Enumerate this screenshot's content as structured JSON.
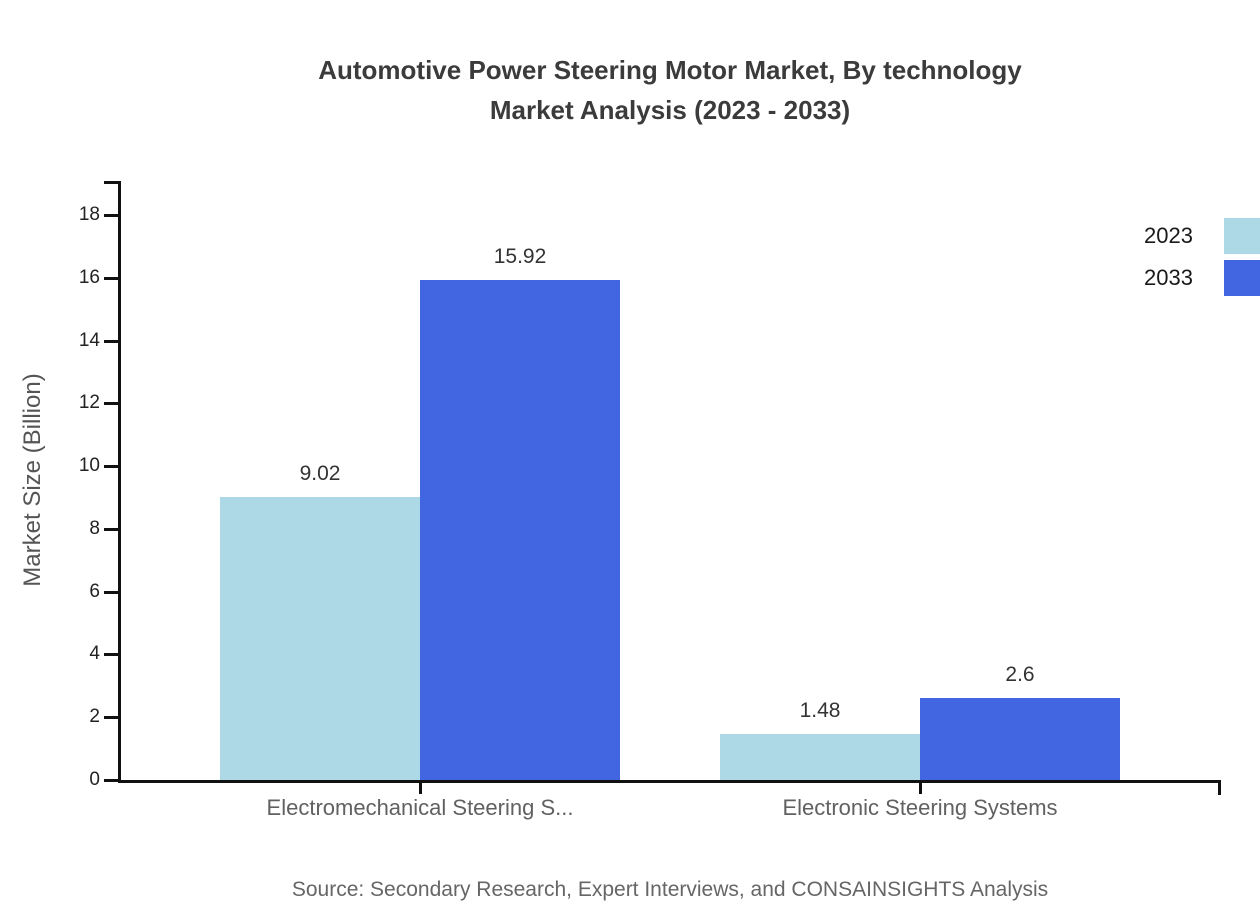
{
  "chart_data": {
    "type": "bar",
    "title": "Automotive Power Steering Motor Market, By technology Market Analysis (2023 - 2033)",
    "title_lines": [
      "Automotive Power Steering Motor Market, By technology",
      "Market Analysis (2023 - 2033)"
    ],
    "categories": [
      "Electromechanical Steering S...",
      "Electronic Steering Systems"
    ],
    "series": [
      {
        "name": "2023",
        "color": "#ADD8E6",
        "values": [
          9.02,
          1.48
        ]
      },
      {
        "name": "2033",
        "color": "#4266E1",
        "values": [
          15.92,
          2.6
        ]
      }
    ],
    "xlabel": "",
    "ylabel": "Market Size (Billion)",
    "ylim": [
      0,
      19
    ],
    "yticks": [
      0,
      2,
      4,
      6,
      8,
      10,
      12,
      14,
      16,
      18
    ],
    "grid": false,
    "legend_position": "top-right",
    "bar_value_labels": [
      "9.02",
      "15.92",
      "1.48",
      "2.6"
    ]
  },
  "footer": {
    "source": "Source: Secondary Research, Expert Interviews, and CONSAINSIGHTS Analysis"
  },
  "colors": {
    "title": "#3b3b3b",
    "axis": "#111111",
    "ytick_label": "#222222",
    "category_label": "#616161",
    "value_label": "#333333",
    "ylabel": "#555555",
    "source": "#666666"
  }
}
